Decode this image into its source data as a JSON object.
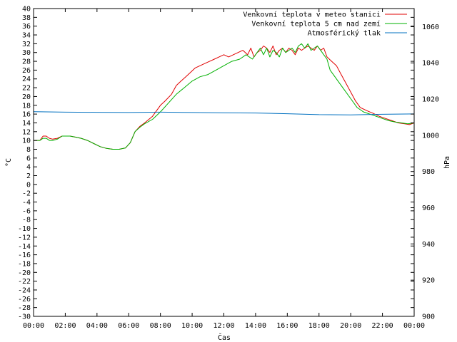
{
  "chart_data": {
    "type": "line",
    "xlabel": "Čas",
    "ylabel": "°C",
    "y2label": "hPa",
    "xlim": [
      0,
      24
    ],
    "ylim": [
      -30,
      40
    ],
    "y2lim": [
      900,
      1070
    ],
    "grid": false,
    "legend_position": "top-right",
    "x_ticks": [
      "00:00",
      "02:00",
      "04:00",
      "06:00",
      "08:00",
      "10:00",
      "12:00",
      "14:00",
      "16:00",
      "18:00",
      "20:00",
      "22:00",
      "00:00"
    ],
    "y_ticks": [
      40,
      38,
      36,
      34,
      32,
      30,
      28,
      26,
      24,
      22,
      20,
      18,
      16,
      14,
      12,
      10,
      8,
      6,
      4,
      2,
      0,
      -2,
      -4,
      -6,
      -8,
      -10,
      -12,
      -14,
      -16,
      -18,
      -20,
      -22,
      -24,
      -26,
      -28,
      -30
    ],
    "y2_ticks": [
      1060,
      1040,
      1020,
      1000,
      980,
      960,
      940,
      920,
      900
    ],
    "series": [
      {
        "name": "Venkovní teplota v meteo stanici",
        "color": "#e00000",
        "axis": "left",
        "x": [
          0,
          0.4,
          0.6,
          0.8,
          1.0,
          1.2,
          1.5,
          1.8,
          2.0,
          2.3,
          2.6,
          3.0,
          3.4,
          3.8,
          4.2,
          4.6,
          5.0,
          5.4,
          5.8,
          6.1,
          6.4,
          6.7,
          7.0,
          7.5,
          8.0,
          8.3,
          8.7,
          9.0,
          9.3,
          9.6,
          9.9,
          10.2,
          10.5,
          10.8,
          11.1,
          11.4,
          11.7,
          12.0,
          12.3,
          12.6,
          12.9,
          13.2,
          13.5,
          13.7,
          13.9,
          14.1,
          14.3,
          14.5,
          14.7,
          14.9,
          15.1,
          15.3,
          15.5,
          15.7,
          15.9,
          16.1,
          16.3,
          16.5,
          16.7,
          16.9,
          17.1,
          17.3,
          17.5,
          17.7,
          17.9,
          18.1,
          18.3,
          18.5,
          18.8,
          19.1,
          19.4,
          19.7,
          20.0,
          20.3,
          20.6,
          21.0,
          21.4,
          21.8,
          22.2,
          22.6,
          23.0,
          23.4,
          23.7,
          24.0
        ],
        "y": [
          10,
          10,
          11,
          11,
          10.5,
          10.3,
          10.5,
          11,
          11,
          11,
          10.8,
          10.5,
          10,
          9.3,
          8.6,
          8.2,
          8,
          8,
          8.3,
          9.5,
          12,
          13.2,
          14,
          15.5,
          18,
          19,
          20.5,
          22.5,
          23.5,
          24.5,
          25.5,
          26.5,
          27,
          27.5,
          28,
          28.5,
          29,
          29.5,
          29,
          29.5,
          30,
          30.5,
          29.5,
          31,
          29,
          30,
          30.5,
          31.5,
          31,
          30,
          31.5,
          29.5,
          30.5,
          31,
          30,
          31,
          30.5,
          29.5,
          31,
          30.5,
          31,
          31.5,
          31,
          30.5,
          31.5,
          30.5,
          31,
          29,
          28,
          27,
          25,
          23,
          21,
          19,
          17.5,
          16.8,
          16.2,
          15.5,
          15,
          14.5,
          14,
          13.8,
          13.6,
          14
        ]
      },
      {
        "name": "Venkovní teplota 5 cm nad zemí",
        "color": "#00b000",
        "axis": "left",
        "x": [
          0,
          0.4,
          0.6,
          0.8,
          1.0,
          1.2,
          1.5,
          1.8,
          2.0,
          2.3,
          2.6,
          3.0,
          3.4,
          3.8,
          4.2,
          4.6,
          5.0,
          5.4,
          5.8,
          6.1,
          6.4,
          6.7,
          7.0,
          7.5,
          8.0,
          8.5,
          9.0,
          9.5,
          10.0,
          10.5,
          11.0,
          11.5,
          12.0,
          12.5,
          13.0,
          13.4,
          13.8,
          14.1,
          14.3,
          14.5,
          14.7,
          14.9,
          15.1,
          15.3,
          15.5,
          15.7,
          15.9,
          16.1,
          16.3,
          16.5,
          16.7,
          16.9,
          17.1,
          17.3,
          17.5,
          17.7,
          17.9,
          18.1,
          18.3,
          18.5,
          18.7,
          19.0,
          19.3,
          19.6,
          20.0,
          20.4,
          20.8,
          21.2,
          21.6,
          22.0,
          22.4,
          22.8,
          23.2,
          23.6,
          24.0
        ],
        "y": [
          10,
          10,
          10.5,
          10.5,
          10,
          10,
          10.3,
          11,
          11,
          11,
          10.8,
          10.5,
          10,
          9.3,
          8.6,
          8.2,
          8,
          8,
          8.3,
          9.5,
          12,
          13,
          13.8,
          14.8,
          16.5,
          18.5,
          20.5,
          22,
          23.5,
          24.5,
          25,
          26,
          27,
          28,
          28.5,
          29.5,
          28.5,
          30,
          31,
          29.5,
          31,
          29,
          30.5,
          30,
          29,
          31,
          30,
          30.5,
          31,
          30,
          31.5,
          32,
          31,
          32,
          30.5,
          31,
          31.5,
          30.5,
          29.5,
          28.5,
          26,
          24.5,
          23,
          21.5,
          19.5,
          17.5,
          16.5,
          16,
          15.5,
          15,
          14.5,
          14.2,
          14,
          13.8,
          14
        ]
      },
      {
        "name": "Atmosférický tlak",
        "color": "#0070c0",
        "axis": "right",
        "x": [
          0,
          2,
          4,
          6,
          8,
          9,
          10,
          12,
          14,
          16,
          18,
          20,
          22,
          24
        ],
        "y": [
          1013,
          1012.8,
          1012.7,
          1012.6,
          1012.8,
          1012.7,
          1012.6,
          1012.4,
          1012.3,
          1011.9,
          1011.4,
          1011.3,
          1011.6,
          1011.8
        ]
      }
    ]
  }
}
